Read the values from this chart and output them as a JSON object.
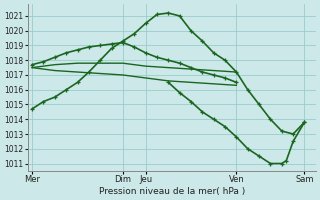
{
  "bg_color": "#cce8e8",
  "grid_color": "#99cccc",
  "line_color": "#1a6620",
  "xlabel": "Pression niveau de la mer( hPa )",
  "ylim": [
    1010.5,
    1021.8
  ],
  "yticks": [
    1011,
    1012,
    1013,
    1014,
    1015,
    1016,
    1017,
    1018,
    1019,
    1020,
    1021
  ],
  "xlim": [
    -0.2,
    12.5
  ],
  "tick_positions": [
    0,
    4,
    5,
    9,
    12
  ],
  "tick_labels": [
    "Mer",
    "Dim",
    "Jeu",
    "Ven",
    "Sam"
  ],
  "series": [
    {
      "x": [
        0,
        0.5,
        1,
        1.5,
        2,
        2.5,
        3,
        3.5,
        4,
        4.5,
        5,
        5.5,
        6,
        6.5,
        7,
        7.5,
        8,
        8.5,
        9,
        9.5,
        10,
        10.5,
        11,
        11.5,
        12
      ],
      "y": [
        1014.7,
        1015.2,
        1015.5,
        1016.0,
        1016.5,
        1017.2,
        1018.0,
        1018.8,
        1019.3,
        1019.8,
        1020.5,
        1021.1,
        1021.2,
        1021.0,
        1020.0,
        1019.3,
        1018.5,
        1018.0,
        1017.2,
        1016.0,
        1015.0,
        1014.0,
        1013.2,
        1013.0,
        1013.8
      ],
      "markers": true,
      "lw": 1.2
    },
    {
      "x": [
        0,
        1,
        2,
        3,
        4,
        5,
        6,
        7,
        8,
        9
      ],
      "y": [
        1017.5,
        1017.7,
        1017.8,
        1017.8,
        1017.8,
        1017.6,
        1017.5,
        1017.4,
        1017.3,
        1017.2
      ],
      "markers": false,
      "lw": 1.0
    },
    {
      "x": [
        0,
        1,
        2,
        3,
        4,
        5,
        6,
        7,
        8,
        9
      ],
      "y": [
        1017.5,
        1017.3,
        1017.2,
        1017.1,
        1017.0,
        1016.8,
        1016.6,
        1016.5,
        1016.4,
        1016.3
      ],
      "markers": false,
      "lw": 1.0
    },
    {
      "x": [
        0,
        0.5,
        1,
        1.5,
        2,
        2.5,
        3,
        3.5,
        4,
        4.5,
        5,
        5.5,
        6,
        6.5,
        7,
        7.5,
        8,
        8.5,
        9
      ],
      "y": [
        1017.7,
        1017.9,
        1018.2,
        1018.5,
        1018.7,
        1018.9,
        1019.0,
        1019.1,
        1019.2,
        1018.9,
        1018.5,
        1018.2,
        1018.0,
        1017.8,
        1017.5,
        1017.2,
        1017.0,
        1016.8,
        1016.5
      ],
      "markers": true,
      "lw": 1.2
    },
    {
      "x": [
        6,
        6.5,
        7,
        7.5,
        8,
        8.5,
        9,
        9.5,
        10,
        10.5,
        11,
        11.2,
        11.5,
        12
      ],
      "y": [
        1016.5,
        1015.8,
        1015.2,
        1014.5,
        1014.0,
        1013.5,
        1012.8,
        1012.0,
        1011.5,
        1011.0,
        1011.0,
        1011.2,
        1012.5,
        1013.8
      ],
      "markers": true,
      "lw": 1.2
    }
  ]
}
